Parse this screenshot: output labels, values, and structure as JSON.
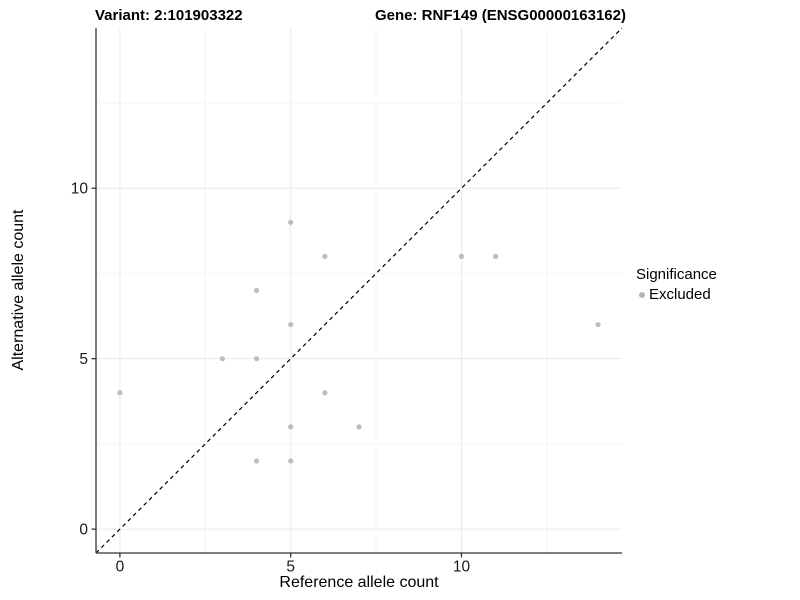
{
  "header": {
    "variant_title": "Variant: 2:101903322",
    "gene_title": "Gene: RNF149 (ENSG00000163162)"
  },
  "chart_data": {
    "type": "scatter",
    "xlabel": "Reference allele count",
    "ylabel": "Alternative allele count",
    "xlim": [
      -0.7,
      14.7
    ],
    "ylim": [
      -0.7,
      14.7
    ],
    "x_major_ticks": [
      0,
      5,
      10
    ],
    "y_major_ticks": [
      0,
      5,
      10
    ],
    "x_minor_ticks": [
      2.5,
      7.5,
      12.5
    ],
    "y_minor_ticks": [
      2.5,
      7.5,
      12.5
    ],
    "grid": "on",
    "identity_line": {
      "type": "abline",
      "slope": 1,
      "intercept": 0,
      "style": "dashed",
      "color": "#000000"
    },
    "series": [
      {
        "name": "Excluded",
        "color": "#bdbdbd",
        "points": [
          [
            0,
            4
          ],
          [
            3,
            5
          ],
          [
            4,
            2
          ],
          [
            4,
            5
          ],
          [
            4,
            7
          ],
          [
            5,
            2
          ],
          [
            5,
            3
          ],
          [
            5,
            6
          ],
          [
            5,
            9
          ],
          [
            6,
            4
          ],
          [
            6,
            8
          ],
          [
            7,
            3
          ],
          [
            10,
            8
          ],
          [
            11,
            8
          ],
          [
            14,
            6
          ]
        ]
      }
    ],
    "legend": {
      "position": "right",
      "title": "Significance",
      "items": [
        {
          "label": "Excluded",
          "color": "#b5b5b5"
        }
      ]
    }
  },
  "style_colors": {
    "major_grid": "#e9e9e9",
    "minor_grid": "#f5f5f5",
    "axis_line": "#333333",
    "tick_label": "#1a1a1a"
  }
}
